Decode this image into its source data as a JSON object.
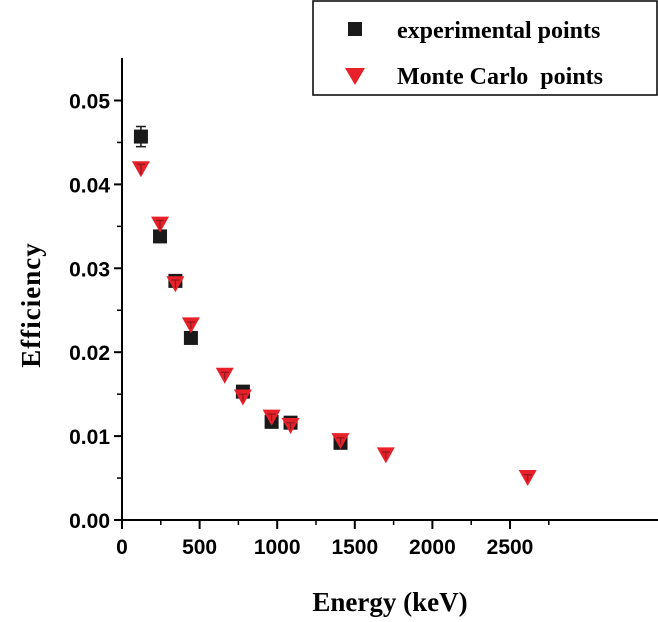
{
  "chart_data": {
    "type": "scatter",
    "xlabel": "Energy (keV)",
    "ylabel": "Efficiency",
    "xlim": [
      0,
      2800
    ],
    "ylim": [
      0,
      0.055
    ],
    "x_ticks": [
      "0",
      "500",
      "1000",
      "1500",
      "2000",
      "2500"
    ],
    "y_ticks": [
      "0.00",
      "0.01",
      "0.02",
      "0.03",
      "0.04",
      "0.05"
    ],
    "legend_position": "top-right",
    "series": [
      {
        "name": "experimental points",
        "marker": "square",
        "color": "#1a1a1a",
        "points": [
          {
            "x": 122,
            "y": 0.0457,
            "err": 0.0012
          },
          {
            "x": 245,
            "y": 0.0338,
            "err": 0.0007
          },
          {
            "x": 344,
            "y": 0.0285,
            "err": 0.0006
          },
          {
            "x": 444,
            "y": 0.0217,
            "err": 0.0006
          },
          {
            "x": 779,
            "y": 0.0153,
            "err": 0.0005
          },
          {
            "x": 964,
            "y": 0.0117,
            "err": 0.0004
          },
          {
            "x": 1086,
            "y": 0.0116,
            "err": 0.0004
          },
          {
            "x": 1408,
            "y": 0.0092,
            "err": 0.0004
          }
        ]
      },
      {
        "name": "Monte Carlo  points",
        "marker": "triangle-down",
        "color": "#e8202a",
        "points": [
          {
            "x": 122,
            "y": 0.0418,
            "err": 0.0006
          },
          {
            "x": 245,
            "y": 0.0352,
            "err": 0.0005
          },
          {
            "x": 344,
            "y": 0.0281,
            "err": 0.0005
          },
          {
            "x": 444,
            "y": 0.0232,
            "err": 0.0004
          },
          {
            "x": 662,
            "y": 0.0172,
            "err": 0.0004
          },
          {
            "x": 779,
            "y": 0.0146,
            "err": 0.0004
          },
          {
            "x": 964,
            "y": 0.0122,
            "err": 0.0004
          },
          {
            "x": 1086,
            "y": 0.0112,
            "err": 0.0004
          },
          {
            "x": 1408,
            "y": 0.0094,
            "err": 0.0004
          },
          {
            "x": 1700,
            "y": 0.0077,
            "err": 0.0004
          },
          {
            "x": 2614,
            "y": 0.005,
            "err": 0.0004
          }
        ]
      }
    ]
  }
}
